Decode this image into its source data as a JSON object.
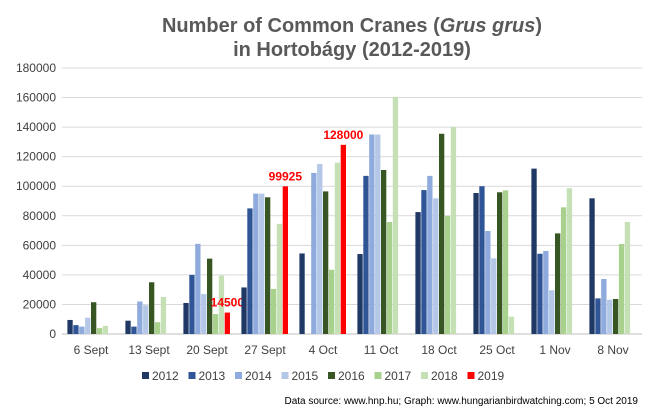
{
  "chart_data": {
    "type": "bar",
    "title_line1_prefix": "Number of Common Cranes (",
    "title_italic": "Grus grus",
    "title_line1_suffix": ")",
    "title_line2": "in Hortobágy (2012-2019)",
    "xlabel": "",
    "ylabel": "",
    "ylim": [
      0,
      180000
    ],
    "yticks": [
      0,
      20000,
      40000,
      60000,
      80000,
      100000,
      120000,
      140000,
      160000,
      180000
    ],
    "grid": true,
    "legend_position": "bottom",
    "categories": [
      "6 Sept",
      "13 Sept",
      "20 Sept",
      "27 Sept",
      "4 Oct",
      "11 Oct",
      "18 Oct",
      "25 Oct",
      "1 Nov",
      "8 Nov"
    ],
    "series": [
      {
        "name": "2012",
        "color": "#1f3864",
        "values": [
          9500,
          9000,
          21000,
          31500,
          54500,
          54100,
          82500,
          95400,
          111900,
          91800
        ]
      },
      {
        "name": "2013",
        "color": "#2f5597",
        "values": [
          6000,
          5000,
          40000,
          85000,
          null,
          107000,
          97400,
          100000,
          54300,
          24100
        ]
      },
      {
        "name": "2014",
        "color": "#8faadc",
        "values": [
          5000,
          22000,
          61000,
          95000,
          109000,
          135000,
          107000,
          69700,
          56200,
          37200
        ]
      },
      {
        "name": "2015",
        "color": "#b4c7e7",
        "values": [
          11000,
          19500,
          27000,
          95000,
          115000,
          135000,
          91800,
          51200,
          29600,
          23200
        ]
      },
      {
        "name": "2016",
        "color": "#375623",
        "values": [
          21500,
          35000,
          51000,
          92500,
          96500,
          111000,
          135500,
          95900,
          68100,
          23700
        ]
      },
      {
        "name": "2017",
        "color": "#a9d18e",
        "values": [
          4000,
          8000,
          13500,
          30500,
          43500,
          75800,
          79900,
          97200,
          85700,
          60900
        ]
      },
      {
        "name": "2018",
        "color": "#c5e0b4",
        "values": [
          5500,
          25000,
          39500,
          74500,
          116000,
          160500,
          140000,
          11700,
          98600,
          75800
        ]
      },
      {
        "name": "2019",
        "color": "#ff0000",
        "values": [
          null,
          null,
          14500,
          99925,
          128000,
          null,
          null,
          null,
          null,
          null
        ],
        "data_labels": [
          null,
          null,
          "14500",
          "99925",
          "128000",
          null,
          null,
          null,
          null,
          null
        ]
      }
    ],
    "source_note": "Data source: www.hnp.hu;  Graph: www.hungarianbirdwatching.com;  5 Oct 2019"
  }
}
